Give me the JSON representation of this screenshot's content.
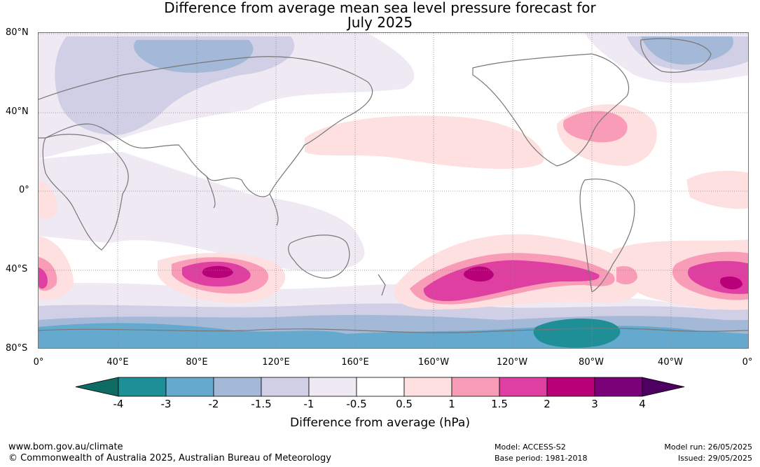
{
  "title_line1": "Difference from average mean sea level pressure forecast for",
  "title_line2": "July 2025",
  "lat_labels": [
    "80°N",
    "40°N",
    "0°",
    "40°S",
    "80°S"
  ],
  "lon_labels": [
    "0°",
    "40°E",
    "80°E",
    "120°E",
    "160°E",
    "160°W",
    "120°W",
    "80°W",
    "40°W",
    "0°"
  ],
  "legend": {
    "title": "Difference from average (hPa)",
    "labels": [
      "-4",
      "-3",
      "-2",
      "-1.5",
      "-1",
      "-0.5",
      "0.5",
      "1",
      "1.5",
      "2",
      "3",
      "4"
    ],
    "colors": [
      "#0e6b63",
      "#1f8f97",
      "#66a9cf",
      "#a4b8d8",
      "#d0cfe6",
      "#efe9f3",
      "#ffffff",
      "#fde0df",
      "#f99cb7",
      "#de3fa0",
      "#b80078",
      "#7a0177",
      "#4d0060"
    ]
  },
  "footer": {
    "url": "www.bom.gov.au/climate",
    "copyright": "© Commonwealth of Australia 2025, Australian Bureau of Meteorology",
    "model": "Model: ACCESS-S2",
    "base_period": "Base period: 1981-2018",
    "model_run": "Model run: 26/05/2025",
    "issued": "Issued: 29/05/2025"
  }
}
